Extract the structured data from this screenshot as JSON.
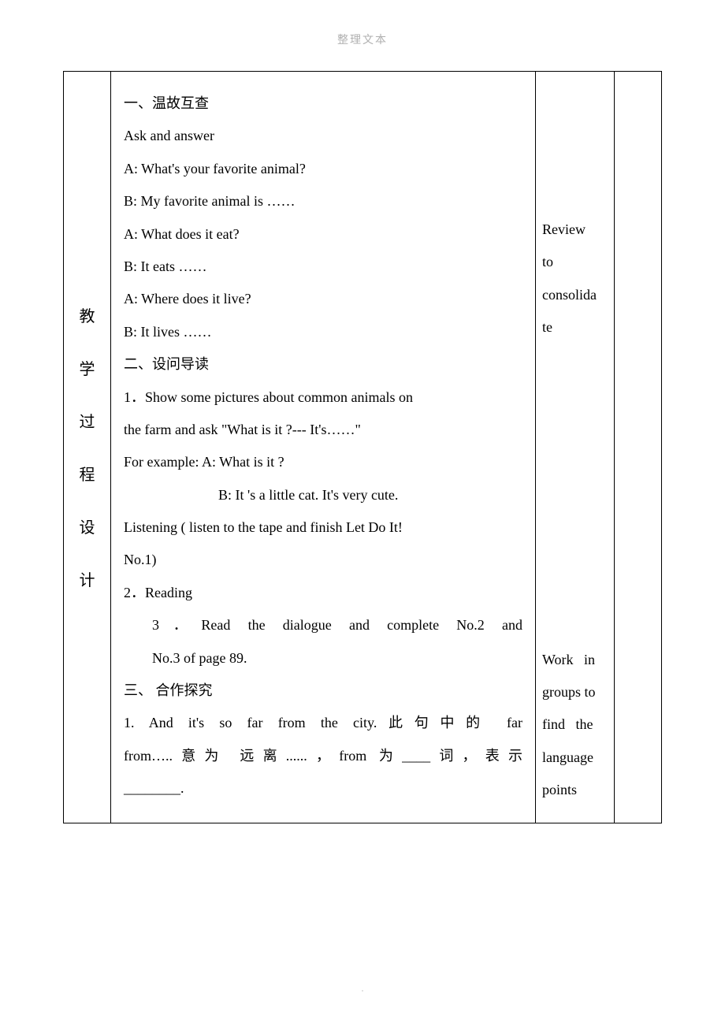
{
  "header": "整理文本",
  "leftColumn": {
    "chars": [
      "教",
      "学",
      "过",
      "程",
      "设",
      "计"
    ]
  },
  "main": {
    "s1_title": "一、温故互查",
    "s1_l1": "Ask and answer",
    "s1_l2": "A: What's your favorite animal?",
    "s1_l3": "B: My favorite animal is ……",
    "s1_l4": "A: What does it eat?",
    "s1_l5": "B: It eats ……",
    "s1_l6": "A: Where does it live?",
    "s1_l7": "B: It lives ……",
    "s2_title": "二、设问导读",
    "s2_l1": "1．Show some pictures about common animals on",
    "s2_l2": "the farm and ask \"What is it ?--- It's……\"",
    "s2_l3": "For example: A: What is it ?",
    "s2_l4": "B: It 's a little cat. It's very cute.",
    "s2_l5": "Listening ( listen to the tape and finish Let Do It!",
    "s2_l6": "No.1)",
    "s2_l7": "2．Reading",
    "s2_l8a": "3．Read the dialogue and complete No.2 and",
    "s2_l8b": "No.3 of page 89.",
    "s3_title": "三、 合作探究",
    "s3_l1a": "1. And it's so far from the city.此句中的 far",
    "s3_l1b": "from…..意为 远离......，from 为____词，表示",
    "s3_l1c": "________."
  },
  "notes": {
    "n1_l1": "Review",
    "n1_l2": "to",
    "n1_l3": "consolida",
    "n1_l4": "te",
    "n2_l1": "Work   in",
    "n2_l2": "groups to",
    "n2_l3": "find   the",
    "n2_l4": "language",
    "n2_l5": "points"
  },
  "footer": "."
}
